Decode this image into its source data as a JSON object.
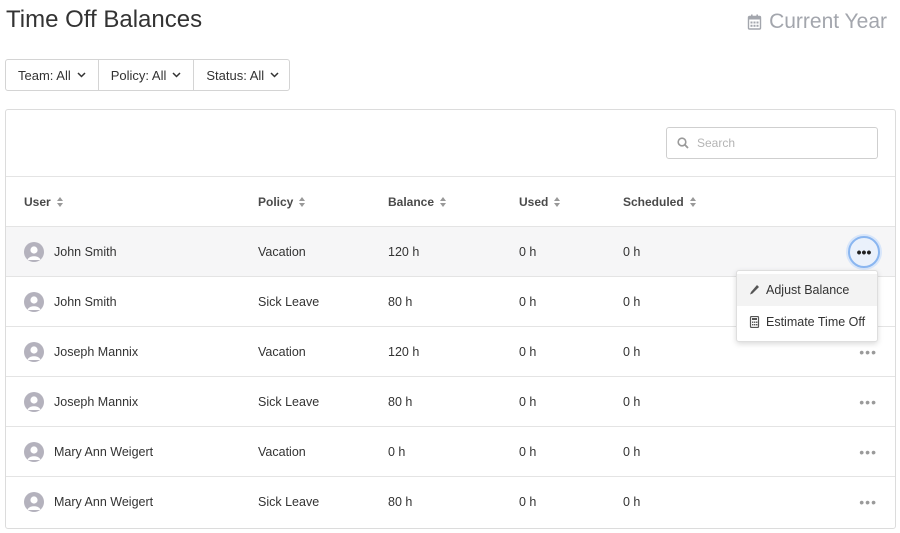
{
  "header": {
    "title": "Time Off Balances",
    "period_label": "Current Year"
  },
  "filters": [
    {
      "label": "Team: All"
    },
    {
      "label": "Policy: All"
    },
    {
      "label": "Status: All"
    }
  ],
  "search": {
    "placeholder": "Search"
  },
  "table": {
    "columns": {
      "user": "User",
      "policy": "Policy",
      "balance": "Balance",
      "used": "Used",
      "scheduled": "Scheduled"
    },
    "rows": [
      {
        "user": "John Smith",
        "policy": "Vacation",
        "balance": "120 h",
        "used": "0 h",
        "scheduled": "0 h"
      },
      {
        "user": "John Smith",
        "policy": "Sick Leave",
        "balance": "80 h",
        "used": "0 h",
        "scheduled": "0 h"
      },
      {
        "user": "Joseph Mannix",
        "policy": "Vacation",
        "balance": "120 h",
        "used": "0 h",
        "scheduled": "0 h"
      },
      {
        "user": "Joseph Mannix",
        "policy": "Sick Leave",
        "balance": "80 h",
        "used": "0 h",
        "scheduled": "0 h"
      },
      {
        "user": "Mary Ann Weigert",
        "policy": "Vacation",
        "balance": "0 h",
        "used": "0 h",
        "scheduled": "0 h"
      },
      {
        "user": "Mary Ann Weigert",
        "policy": "Sick Leave",
        "balance": "80 h",
        "used": "0 h",
        "scheduled": "0 h"
      }
    ],
    "more_glyph": "•••"
  },
  "context_menu": {
    "items": [
      {
        "label": "Adjust Balance",
        "icon": "pencil-icon"
      },
      {
        "label": "Estimate Time Off",
        "icon": "calculator-icon"
      }
    ]
  },
  "colors": {
    "accent_ring": "#8ab6f0",
    "muted_text": "#a3a6ad",
    "avatar": "#b4b2bd"
  }
}
